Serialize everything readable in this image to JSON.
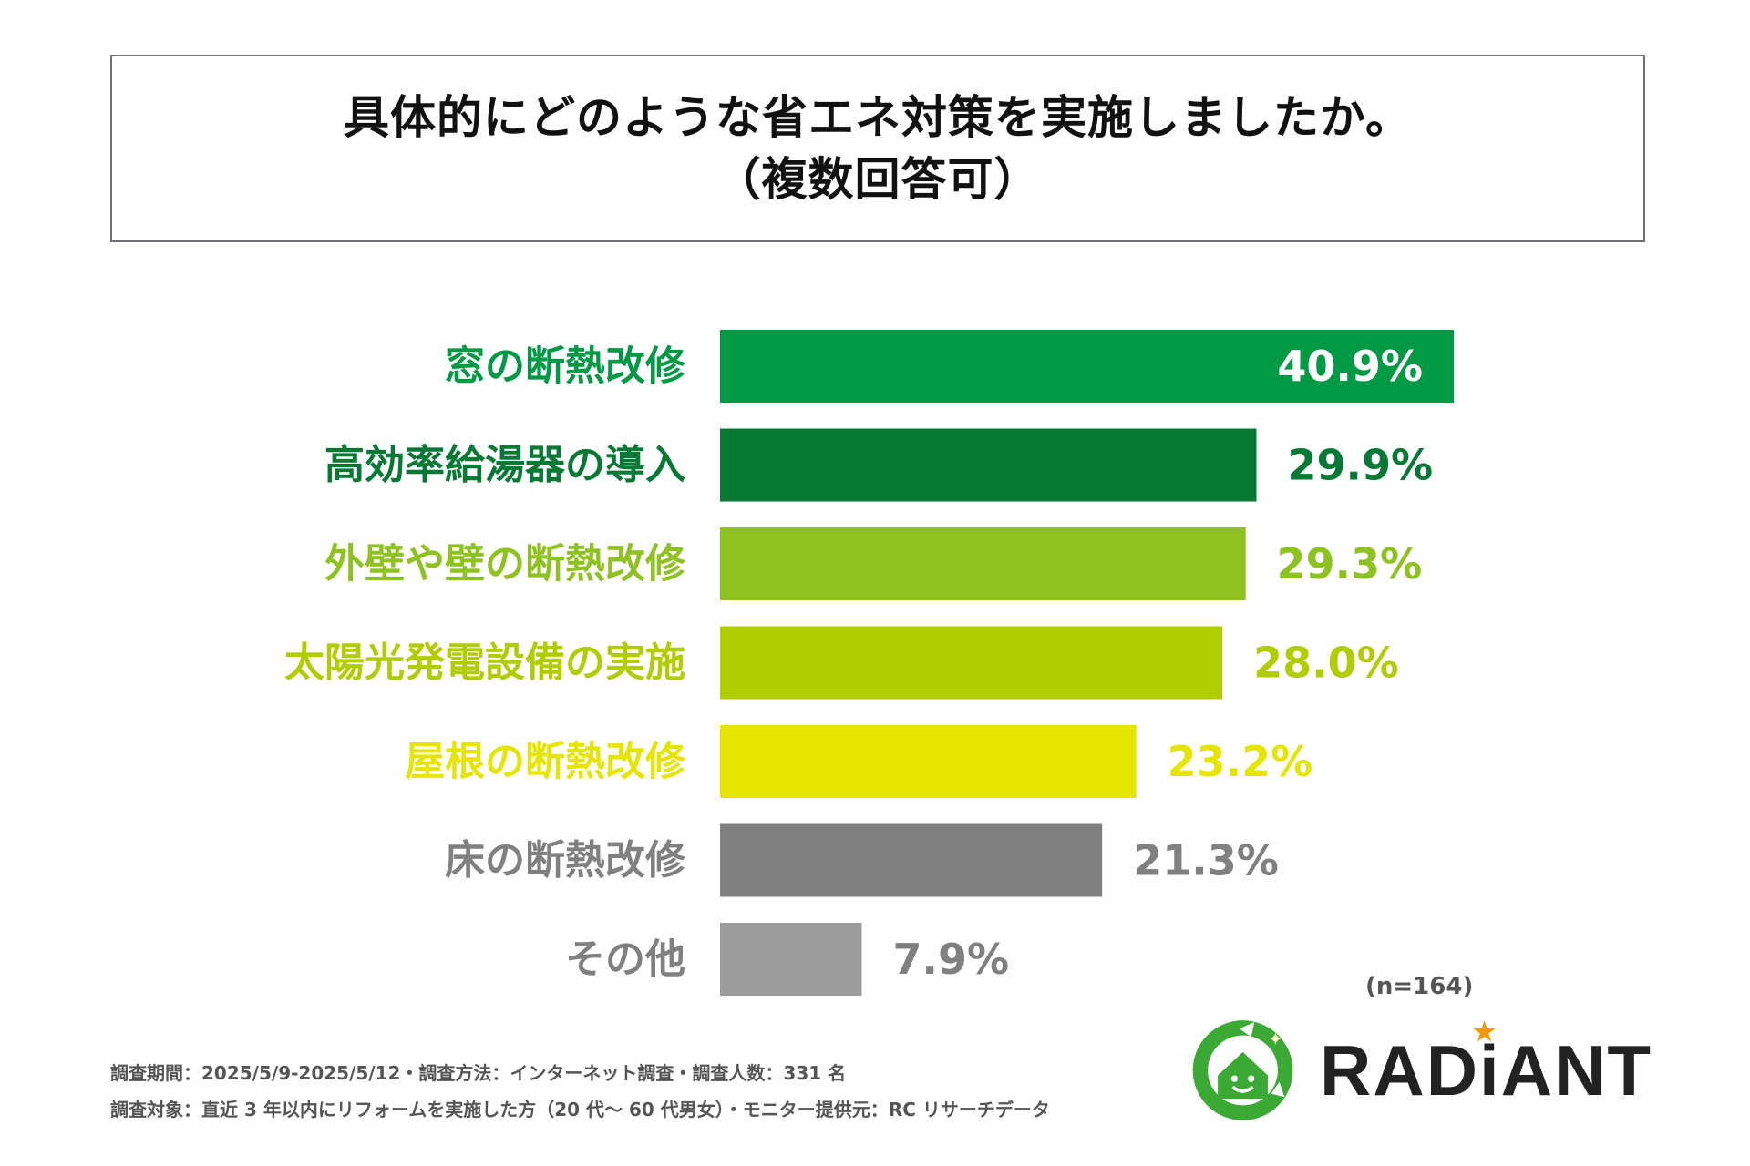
{
  "title": {
    "line1": "具体的にどのような省エネ対策を実施しましたか。",
    "line2": "（複数回答可）"
  },
  "chart_data": {
    "type": "bar",
    "orientation": "horizontal",
    "title": "具体的にどのような省エネ対策を実施しましたか。（複数回答可）",
    "categories": [
      "窓の断熱改修",
      "高効率給湯器の導入",
      "外壁や壁の断熱改修",
      "太陽光発電設備の実施",
      "屋根の断熱改修",
      "床の断熱改修",
      "その他"
    ],
    "values": [
      40.9,
      29.9,
      29.3,
      28.0,
      23.2,
      21.3,
      7.9
    ],
    "value_labels": [
      "40.9%",
      "29.9%",
      "29.3%",
      "28.0%",
      "23.2%",
      "21.3%",
      "7.9%"
    ],
    "colors": [
      "#009a44",
      "#067a34",
      "#8dc21f",
      "#b0cd00",
      "#e5e500",
      "#808080",
      "#9c9c9c"
    ],
    "label_colors": [
      "#009a44",
      "#067a34",
      "#8dc21f",
      "#b0cd00",
      "#e5e500",
      "#808080",
      "#808080"
    ],
    "value_label_colors": [
      "#ffffff",
      "#067a34",
      "#8dc21f",
      "#b0cd00",
      "#e5e500",
      "#808080",
      "#808080"
    ],
    "xlim": [
      0,
      40.9
    ],
    "unit": "%"
  },
  "sample_size": "(n=164)",
  "footnotes": {
    "line1": "調査期間：2025/5/9-2025/5/12・調査方法：インターネット調査・調査人数：331 名",
    "line2": "調査対象：直近 3 年以内にリフォームを実施した方（20 代〜 60 代男女）・モニター提供元：RC リサーチデータ"
  },
  "logo": {
    "text": "RADiANT",
    "mark_color": "#3aaa35",
    "star_color": "#f39800"
  }
}
